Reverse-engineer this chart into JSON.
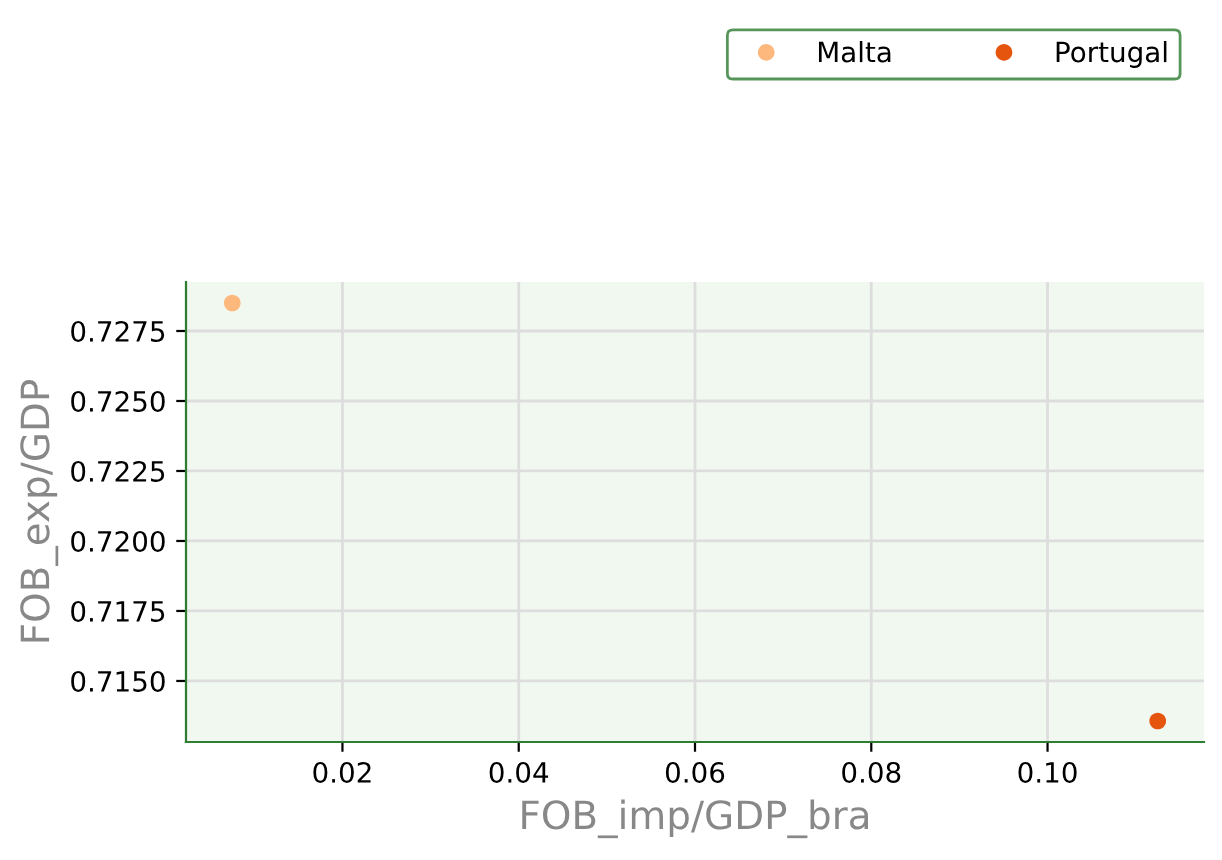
{
  "chart_data": {
    "type": "scatter",
    "xlabel": "FOB_imp/GDP_bra",
    "ylabel": "FOB_exp/GDP",
    "series": [
      {
        "name": "Malta",
        "color": "#fdb97d",
        "x": [
          0.0075
        ],
        "values": [
          0.7285
        ]
      },
      {
        "name": "Portugal",
        "color": "#e6550d",
        "x": [
          0.1125
        ],
        "values": [
          0.71357
        ]
      }
    ],
    "xlim": [
      0.00225,
      0.11775
    ],
    "xticks": [
      0.02,
      0.04,
      0.06,
      0.08,
      {
        "value": 0.1,
        "label": "0.10"
      }
    ],
    "ylim": [
      0.71282,
      0.72925
    ],
    "yticks": [
      {
        "value": 0.715,
        "label": "0.7150"
      },
      {
        "value": 0.7175,
        "label": "0.7175"
      },
      {
        "value": 0.72,
        "label": "0.7200"
      },
      {
        "value": 0.7225,
        "label": "0.7225"
      },
      {
        "value": 0.725,
        "label": "0.7250"
      },
      {
        "value": 0.7275,
        "label": "0.7275"
      }
    ],
    "grid": true,
    "legend": "top right",
    "marker": "circle"
  }
}
